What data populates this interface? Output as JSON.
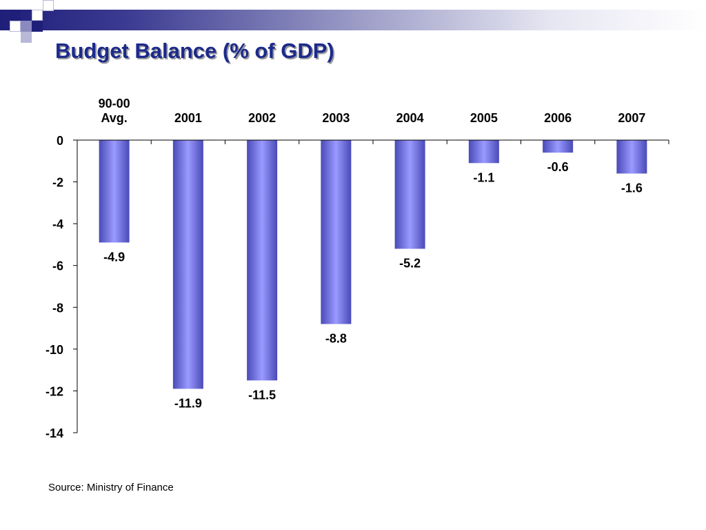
{
  "slide": {
    "title": "Budget Balance (% of GDP)",
    "source": "Source:  Ministry of Finance"
  },
  "colors": {
    "title": "#1c2a8c",
    "bar_dark": "#4a4ab8",
    "bar_light": "#9a9aff",
    "axis": "#000000"
  },
  "chart_data": {
    "type": "bar",
    "categories": [
      [
        "90-00",
        "Avg."
      ],
      [
        "2001"
      ],
      [
        "2002"
      ],
      [
        "2003"
      ],
      [
        "2004"
      ],
      [
        "2005"
      ],
      [
        "2006"
      ],
      [
        "2007"
      ]
    ],
    "values": [
      -4.9,
      -11.9,
      -11.5,
      -8.8,
      -5.2,
      -1.1,
      -0.6,
      -1.6
    ],
    "data_labels": [
      "-4.9",
      "-11.9",
      "-11.5",
      "-8.8",
      "-5.2",
      "-1.1",
      "-0.6",
      "-1.6"
    ],
    "y_ticks": [
      0,
      -2,
      -4,
      -6,
      -8,
      -10,
      -12,
      -14
    ],
    "ylim": [
      -14,
      0
    ],
    "grid": false,
    "legend": "none",
    "category_axis_position": "top"
  }
}
